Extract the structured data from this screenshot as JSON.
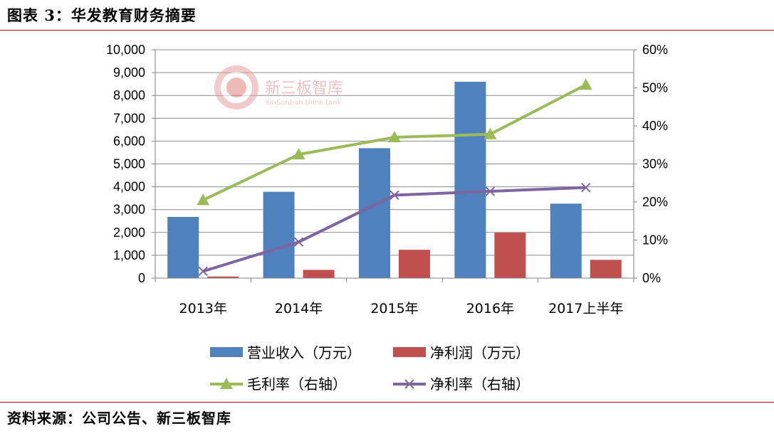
{
  "header": {
    "title": "图表 3：华发教育财务摘要"
  },
  "footer": {
    "source": "资料来源：公司公告、新三板智库"
  },
  "watermark": {
    "name": "新三板智库",
    "subtitle": "XinSanban think tank"
  },
  "colors": {
    "revenue": "#4f81bd",
    "profit": "#c0504d",
    "gross_margin": "#9bbb59",
    "net_margin": "#8064a2",
    "rule": "#c00000"
  },
  "chart_data": {
    "type": "bar",
    "categories": [
      "2013年",
      "2014年",
      "2015年",
      "2016年",
      "2017上半年"
    ],
    "series": [
      {
        "name": "营业收入（万元）",
        "type": "bar",
        "axis": "left",
        "values": [
          2680,
          3780,
          5690,
          8600,
          3260
        ]
      },
      {
        "name": "净利润（万元）",
        "type": "bar",
        "axis": "left",
        "values": [
          70,
          360,
          1240,
          1990,
          800
        ]
      },
      {
        "name": "毛利率（右轴）",
        "type": "line",
        "marker": "triangle",
        "axis": "right",
        "values": [
          20.5,
          32.5,
          37.0,
          37.8,
          50.8
        ]
      },
      {
        "name": "净利率（右轴）",
        "type": "line",
        "marker": "x",
        "axis": "right",
        "values": [
          1.8,
          9.5,
          21.8,
          22.8,
          23.8
        ]
      }
    ],
    "y_left": {
      "min": 0,
      "max": 10000,
      "ticks": [
        "0",
        "1,000",
        "2,000",
        "3,000",
        "4,000",
        "5,000",
        "6,000",
        "7,000",
        "8,000",
        "9,000",
        "10,000"
      ]
    },
    "y_right": {
      "min": 0,
      "max": 60,
      "unit": "%",
      "ticks": [
        "0%",
        "10%",
        "20%",
        "30%",
        "40%",
        "50%",
        "60%"
      ]
    },
    "grid": true,
    "legend_position": "bottom"
  }
}
